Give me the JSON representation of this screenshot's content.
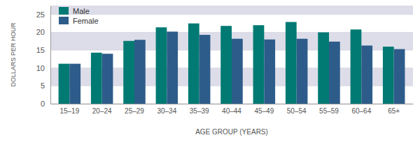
{
  "chart_data": {
    "type": "bar",
    "x_label": "AGE GROUP (YEARS)",
    "y_label": "DOLLARS PER HOUR",
    "categories": [
      "15–19",
      "20–24",
      "25–29",
      "30–34",
      "35–39",
      "40–44",
      "45–49",
      "50–54",
      "55–59",
      "60–64",
      "65+"
    ],
    "series": [
      {
        "name": "Male",
        "color": "#007a73",
        "values": [
          11.2,
          14.3,
          17.6,
          21.4,
          22.5,
          21.8,
          22.0,
          22.9,
          20.0,
          20.8,
          16.0
        ]
      },
      {
        "name": "Female",
        "color": "#2d5c8a",
        "values": [
          11.2,
          14.0,
          17.9,
          20.2,
          19.3,
          18.2,
          18.0,
          18.2,
          17.4,
          16.3,
          15.3
        ]
      }
    ],
    "ylim": [
      0,
      27.5
    ],
    "yticks": [
      0,
      5,
      10,
      15,
      20,
      25
    ],
    "grid": true,
    "legend": "upper left"
  }
}
